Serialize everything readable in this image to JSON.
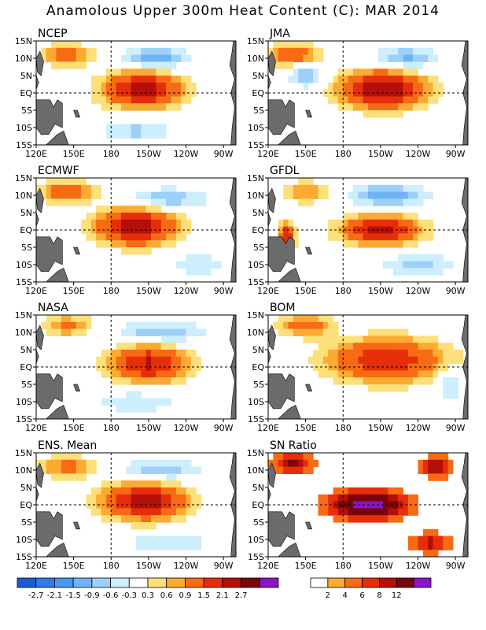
{
  "title": "Anamolous Upper 300m Heat Content (C): MAR 2014",
  "chart_data": [
    {
      "type": "heatmap",
      "name": "NCEP",
      "x_ticks": [
        "120E",
        "150E",
        "180",
        "150W",
        "120W",
        "90W"
      ],
      "y_ticks": [
        "15N",
        "10N",
        "5N",
        "EQ",
        "5S",
        "10S",
        "15S"
      ],
      "xlim": [
        120,
        280
      ],
      "ylim": [
        -15,
        15
      ],
      "grid": "dashed lines at 180 and EQ",
      "warm_centers": [
        {
          "lon": 205,
          "lat": 1,
          "peak": 2.4,
          "lon_spread": 30,
          "lat_spread": 5
        },
        {
          "lon": 145,
          "lat": 11,
          "peak": 1.2,
          "lon_spread": 20,
          "lat_spread": 3
        }
      ],
      "cold_centers": [
        {
          "lon": 215,
          "lat": 10,
          "peak": -1.2,
          "lon_spread": 25,
          "lat_spread": 3
        },
        {
          "lon": 200,
          "lat": -11,
          "peak": -0.7,
          "lon_spread": 30,
          "lat_spread": 3
        }
      ]
    },
    {
      "type": "heatmap",
      "name": "JMA",
      "x_ticks": [
        "120E",
        "150E",
        "180",
        "150W",
        "120W",
        "90W"
      ],
      "y_ticks": [
        "15N",
        "10N",
        "5N",
        "EQ",
        "5S",
        "10S",
        "15S"
      ],
      "xlim": [
        120,
        280
      ],
      "ylim": [
        -15,
        15
      ],
      "grid": "dashed lines at 180 and EQ",
      "warm_centers": [
        {
          "lon": 212,
          "lat": 1,
          "peak": 2.8,
          "lon_spread": 32,
          "lat_spread": 5
        },
        {
          "lon": 140,
          "lat": 11,
          "peak": 1.3,
          "lon_spread": 22,
          "lat_spread": 3
        }
      ],
      "cold_centers": [
        {
          "lon": 150,
          "lat": 5,
          "peak": -1.0,
          "lon_spread": 12,
          "lat_spread": 3
        },
        {
          "lon": 230,
          "lat": 10,
          "peak": -1.0,
          "lon_spread": 25,
          "lat_spread": 3
        }
      ]
    },
    {
      "type": "heatmap",
      "name": "ECMWF",
      "x_ticks": [
        "120E",
        "150E",
        "180",
        "150W",
        "120W",
        "90W"
      ],
      "y_ticks": [
        "15N",
        "10N",
        "5N",
        "EQ",
        "5S",
        "10S",
        "15S"
      ],
      "xlim": [
        120,
        280
      ],
      "ylim": [
        -15,
        15
      ],
      "grid": "dashed lines at 180 and EQ",
      "warm_centers": [
        {
          "lon": 200,
          "lat": 1,
          "peak": 2.6,
          "lon_spread": 30,
          "lat_spread": 5
        },
        {
          "lon": 145,
          "lat": 11,
          "peak": 1.3,
          "lon_spread": 22,
          "lat_spread": 3
        }
      ],
      "cold_centers": [
        {
          "lon": 225,
          "lat": 9,
          "peak": -0.9,
          "lon_spread": 30,
          "lat_spread": 3
        },
        {
          "lon": 250,
          "lat": -10,
          "peak": -0.6,
          "lon_spread": 20,
          "lat_spread": 3
        }
      ]
    },
    {
      "type": "heatmap",
      "name": "GFDL",
      "x_ticks": [
        "120E",
        "150E",
        "180",
        "150W",
        "120W",
        "90W"
      ],
      "y_ticks": [
        "15N",
        "10N",
        "5N",
        "EQ",
        "5S",
        "10S",
        "15S"
      ],
      "xlim": [
        120,
        280
      ],
      "ylim": [
        -15,
        15
      ],
      "grid": "dashed lines at 180 and EQ",
      "warm_centers": [
        {
          "lon": 210,
          "lat": 0,
          "peak": 2.4,
          "lon_spread": 30,
          "lat_spread": 4
        },
        {
          "lon": 135,
          "lat": -2,
          "peak": 2.0,
          "lon_spread": 6,
          "lat_spread": 4
        },
        {
          "lon": 150,
          "lat": 11,
          "peak": 0.9,
          "lon_spread": 20,
          "lat_spread": 3
        }
      ],
      "cold_centers": [
        {
          "lon": 215,
          "lat": 10,
          "peak": -1.2,
          "lon_spread": 30,
          "lat_spread": 3
        },
        {
          "lon": 240,
          "lat": -10,
          "peak": -0.7,
          "lon_spread": 30,
          "lat_spread": 3
        }
      ]
    },
    {
      "type": "heatmap",
      "name": "NASA",
      "x_ticks": [
        "120E",
        "150E",
        "180",
        "150W",
        "120W",
        "90W"
      ],
      "y_ticks": [
        "15N",
        "10N",
        "5N",
        "EQ",
        "5S",
        "10S",
        "15S"
      ],
      "xlim": [
        120,
        280
      ],
      "ylim": [
        -15,
        15
      ],
      "grid": "dashed lines at 180 and EQ",
      "warm_centers": [
        {
          "lon": 210,
          "lat": 1,
          "peak": 2.2,
          "lon_spread": 30,
          "lat_spread": 5
        },
        {
          "lon": 145,
          "lat": 12,
          "peak": 1.0,
          "lon_spread": 20,
          "lat_spread": 3
        }
      ],
      "cold_centers": [
        {
          "lon": 220,
          "lat": 10,
          "peak": -0.9,
          "lon_spread": 35,
          "lat_spread": 3
        },
        {
          "lon": 200,
          "lat": -10,
          "peak": -0.6,
          "lon_spread": 35,
          "lat_spread": 3
        }
      ]
    },
    {
      "type": "heatmap",
      "name": "BOM",
      "x_ticks": [
        "120E",
        "150E",
        "180",
        "150W",
        "120W",
        "90W"
      ],
      "y_ticks": [
        "15N",
        "10N",
        "5N",
        "EQ",
        "5S",
        "10S",
        "15S"
      ],
      "xlim": [
        120,
        280
      ],
      "ylim": [
        -15,
        15
      ],
      "grid": "dashed lines at 180 and EQ",
      "warm_centers": [
        {
          "lon": 215,
          "lat": 2,
          "peak": 2.0,
          "lon_spread": 45,
          "lat_spread": 6
        },
        {
          "lon": 150,
          "lat": 12,
          "peak": 1.3,
          "lon_spread": 20,
          "lat_spread": 3
        }
      ],
      "cold_centers": [
        {
          "lon": 265,
          "lat": -5,
          "peak": -0.7,
          "lon_spread": 10,
          "lat_spread": 5
        }
      ]
    },
    {
      "type": "heatmap",
      "name": "ENS. Mean",
      "x_ticks": [
        "120E",
        "150E",
        "180",
        "150W",
        "120W",
        "90W"
      ],
      "y_ticks": [
        "15N",
        "10N",
        "5N",
        "EQ",
        "5S",
        "10S",
        "15S"
      ],
      "xlim": [
        120,
        280
      ],
      "ylim": [
        -15,
        15
      ],
      "grid": "dashed lines at 180 and EQ",
      "warm_centers": [
        {
          "lon": 207,
          "lat": 1,
          "peak": 2.5,
          "lon_spread": 32,
          "lat_spread": 5
        },
        {
          "lon": 145,
          "lat": 11,
          "peak": 1.1,
          "lon_spread": 22,
          "lat_spread": 3
        }
      ],
      "cold_centers": [
        {
          "lon": 220,
          "lat": 10,
          "peak": -0.9,
          "lon_spread": 30,
          "lat_spread": 3
        },
        {
          "lon": 225,
          "lat": -11,
          "peak": -0.6,
          "lon_spread": 35,
          "lat_spread": 3
        }
      ]
    },
    {
      "type": "heatmap",
      "name": "SN Ratio",
      "x_ticks": [
        "120E",
        "150E",
        "180",
        "150W",
        "120W",
        "90W"
      ],
      "y_ticks": [
        "15N",
        "10N",
        "5N",
        "EQ",
        "5S",
        "10S",
        "15S"
      ],
      "xlim": [
        120,
        280
      ],
      "ylim": [
        -15,
        15
      ],
      "grid": "dashed lines at 180 and EQ",
      "warm_centers": [
        {
          "lon": 200,
          "lat": 0,
          "peak": 14,
          "lon_spread": 30,
          "lat_spread": 4
        },
        {
          "lon": 140,
          "lat": 12,
          "peak": 9,
          "lon_spread": 15,
          "lat_spread": 3
        },
        {
          "lon": 255,
          "lat": 11,
          "peak": 9,
          "lon_spread": 12,
          "lat_spread": 3
        },
        {
          "lon": 250,
          "lat": -11,
          "peak": 7,
          "lon_spread": 15,
          "lat_spread": 3
        }
      ],
      "cold_centers": []
    }
  ],
  "colorbar_anomaly": {
    "labels": [
      "-2.7",
      "-2.1",
      "-1.5",
      "-0.9",
      "-0.6",
      "-0.3",
      "0.3",
      "0.6",
      "0.9",
      "1.5",
      "2.1",
      "2.7"
    ],
    "colors": [
      "#1a5ccf",
      "#2e7ae6",
      "#4a96f0",
      "#6fb2f5",
      "#9dd0f8",
      "#cdeefc",
      "#ffffff",
      "#fde07a",
      "#fbab32",
      "#f76b14",
      "#e62e0a",
      "#b50f0a",
      "#7a0508",
      "#8a14c7"
    ]
  },
  "colorbar_sn": {
    "labels": [
      "2",
      "4",
      "6",
      "8",
      "12"
    ],
    "colors": [
      "#ffffff",
      "#fbab32",
      "#f76b14",
      "#e62e0a",
      "#b50f0a",
      "#7a0508",
      "#8a14c7"
    ]
  }
}
